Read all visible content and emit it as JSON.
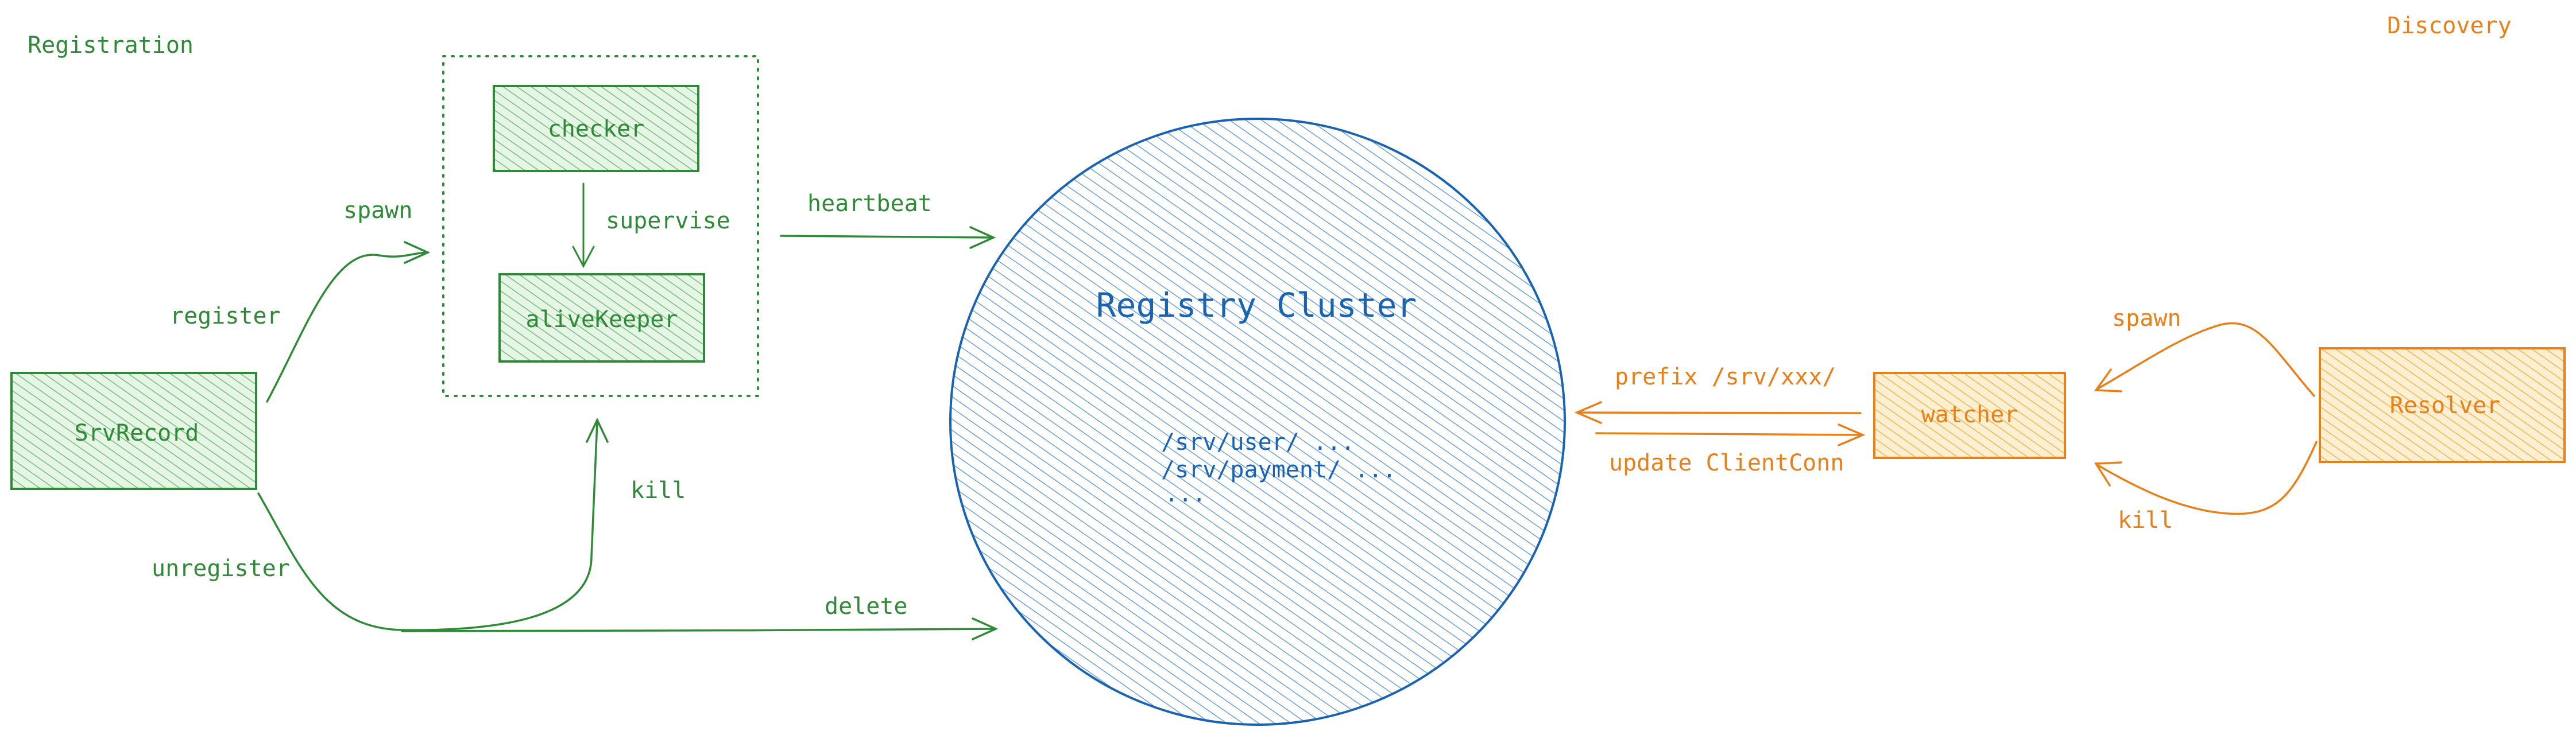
{
  "sections": {
    "registration_label": "Registration",
    "discovery_label": "Discovery"
  },
  "nodes": {
    "srv_record": "SrvRecord",
    "checker": "checker",
    "alive_keeper": "aliveKeeper",
    "registry_cluster": "Registry Cluster",
    "watcher": "watcher",
    "resolver": "Resolver"
  },
  "registry_paths": [
    "/srv/user/ ...",
    "/srv/payment/ ...",
    "..."
  ],
  "edges": {
    "spawn_left": "spawn",
    "register": "register",
    "supervise": "supervise",
    "heartbeat": "heartbeat",
    "kill_left": "kill",
    "unregister": "unregister",
    "delete": "delete",
    "prefix": "prefix /srv/xxx/",
    "update_client_conn": "update ClientConn",
    "spawn_right": "spawn",
    "kill_right": "kill"
  },
  "colors": {
    "green": "#2f8a37",
    "green_fill": "#8fd694",
    "orange": "#e8801a",
    "orange_fill": "#f7c45a",
    "blue": "#1a63b3",
    "blue_fill": "#5a9ee0"
  }
}
